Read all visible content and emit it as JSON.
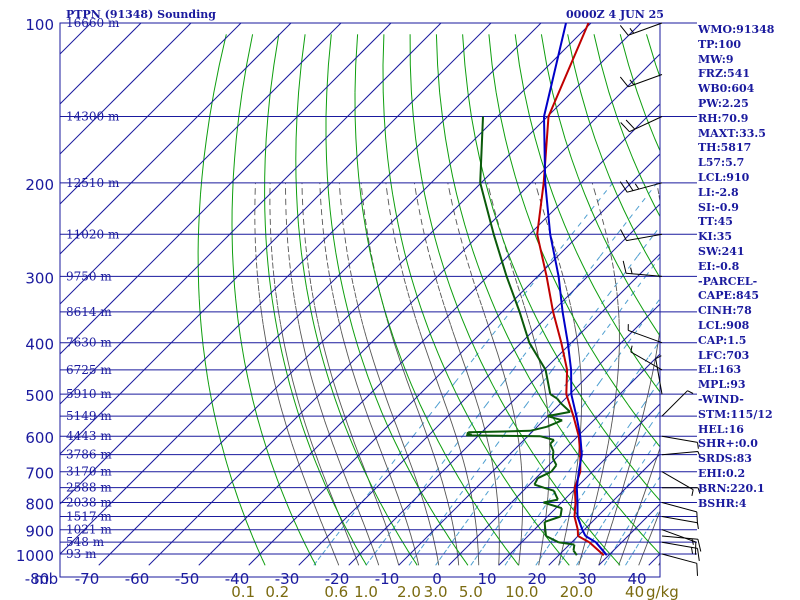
{
  "header": {
    "station_title": "PTPN (91348) Sounding",
    "valid_time": "0000Z  4 JUN 25"
  },
  "colors": {
    "grid": "#1a1a9e",
    "isotherm_text": "#1a1a9e",
    "dry_adiabat": "#0e9e0e",
    "moist_adiabat": "#555555",
    "mixing_ratio": "#4f9fd0",
    "temperature": "#c00000",
    "virtual_temperature": "#0000c8",
    "dewpoint": "#0a5a0a",
    "mixing_label": "#7a6a10",
    "wind_barb": "#000000"
  },
  "indices": [
    "WMO:91348",
    "TP:100",
    "MW:9",
    "FRZ:541",
    "WB0:604",
    "PW:2.25",
    "RH:70.9",
    "MAXT:33.5",
    "TH:5817",
    "L57:5.7",
    "LCL:910",
    "LI:-2.8",
    "SI:-0.9",
    "TT:45",
    "KI:35",
    "SW:241",
    "EI:-0.8",
    "-PARCEL-",
    "CAPE:845",
    "CINH:78",
    "LCL:908",
    "CAP:1.5",
    "LFC:703",
    "EL:163",
    "MPL:93",
    "-WIND-",
    "STM:115/12",
    "HEL:16",
    "SHR+:0.0",
    "SRDS:83",
    "EHI:0.2",
    "BRN:220.1",
    "BSHR:4"
  ],
  "chart_data": {
    "type": "line",
    "title": "PTPN (91348) Sounding",
    "subtitle": "0000Z  4 JUN 25",
    "y_axis_unit": "mb",
    "x_axis_unit": "",
    "mixing_ratio_unit": "g/kg",
    "pressure_ticks": [
      100,
      200,
      300,
      400,
      500,
      600,
      700,
      800,
      900,
      1000
    ],
    "temperature_ticks": [
      -80,
      -70,
      -60,
      -50,
      -40,
      -30,
      -20,
      -10,
      0,
      10,
      20,
      30,
      40
    ],
    "mixing_ratio_labels": [
      "0.1",
      "0.2",
      "0.6",
      "1.0",
      "2.0",
      "3.0",
      "5.0",
      "10.0",
      "20.0",
      "40"
    ],
    "mixing_ratio_values": [
      0.1,
      0.2,
      0.6,
      1.0,
      2.0,
      3.0,
      5.0,
      10.0,
      20.0,
      40.0
    ],
    "height_labels": [
      {
        "p": 100,
        "label": "16660 m"
      },
      {
        "p": 150,
        "label": "14300 m"
      },
      {
        "p": 200,
        "label": "12510 m"
      },
      {
        "p": 250,
        "label": "11020 m"
      },
      {
        "p": 300,
        "label": "9750 m"
      },
      {
        "p": 350,
        "label": "8614 m"
      },
      {
        "p": 400,
        "label": "7630 m"
      },
      {
        "p": 450,
        "label": "6725 m"
      },
      {
        "p": 500,
        "label": "5910 m"
      },
      {
        "p": 550,
        "label": "5149 m"
      },
      {
        "p": 600,
        "label": "4443 m"
      },
      {
        "p": 650,
        "label": "3786 m"
      },
      {
        "p": 700,
        "label": "3170 m"
      },
      {
        "p": 750,
        "label": "2588 m"
      },
      {
        "p": 800,
        "label": "2038 m"
      },
      {
        "p": 850,
        "label": "1517 m"
      },
      {
        "p": 900,
        "label": "1021 m"
      },
      {
        "p": 950,
        "label": "548 m"
      },
      {
        "p": 1000,
        "label": "93 m"
      }
    ],
    "p_range": [
      100,
      1000
    ],
    "t_range_at_bottom": [
      -80,
      40
    ],
    "series": [
      {
        "key": "temperature",
        "points": [
          [
            1005,
            29
          ],
          [
            950,
            23.5
          ],
          [
            925,
            20
          ],
          [
            900,
            18.7
          ],
          [
            850,
            15.4
          ],
          [
            800,
            12.8
          ],
          [
            750,
            9.7
          ],
          [
            700,
            7.6
          ],
          [
            650,
            4.2
          ],
          [
            600,
            0.2
          ],
          [
            550,
            -4.9
          ],
          [
            500,
            -10.7
          ],
          [
            450,
            -15.4
          ],
          [
            400,
            -22.0
          ],
          [
            350,
            -29.8
          ],
          [
            300,
            -38.2
          ],
          [
            250,
            -48.5
          ],
          [
            200,
            -57.5
          ],
          [
            150,
            -69.8
          ],
          [
            100,
            -80.5
          ]
        ]
      },
      {
        "key": "virtual_temperature",
        "points": [
          [
            1005,
            29.6
          ],
          [
            950,
            24.8
          ],
          [
            925,
            21.5
          ],
          [
            900,
            19.6
          ],
          [
            850,
            16.0
          ],
          [
            800,
            13.2
          ],
          [
            750,
            10.1
          ],
          [
            700,
            7.3
          ],
          [
            650,
            4.5
          ],
          [
            600,
            0.5
          ],
          [
            550,
            -4.3
          ],
          [
            500,
            -9.7
          ],
          [
            450,
            -14.6
          ],
          [
            400,
            -20.7
          ],
          [
            350,
            -27.9
          ],
          [
            300,
            -35.8
          ],
          [
            250,
            -45.9
          ],
          [
            200,
            -57.2
          ],
          [
            150,
            -70.7
          ],
          [
            100,
            -85
          ]
        ]
      },
      {
        "key": "dewpoint",
        "points": [
          [
            1005,
            23.6
          ],
          [
            985,
            22.0
          ],
          [
            960,
            21.0
          ],
          [
            950,
            17.3
          ],
          [
            925,
            13.6
          ],
          [
            900,
            12.2
          ],
          [
            870,
            10.5
          ],
          [
            850,
            12.6
          ],
          [
            820,
            11.2
          ],
          [
            800,
            6.4
          ],
          [
            790,
            8.7
          ],
          [
            760,
            6.1
          ],
          [
            750,
            3.5
          ],
          [
            740,
            1.0
          ],
          [
            720,
            0.4
          ],
          [
            700,
            1.8
          ],
          [
            680,
            1.5
          ],
          [
            660,
            -0.6
          ],
          [
            640,
            -1.9
          ],
          [
            620,
            -4.0
          ],
          [
            610,
            -4.0
          ],
          [
            600,
            -7.5
          ],
          [
            598,
            -22.5
          ],
          [
            596,
            -21.5
          ],
          [
            594,
            -22.6
          ],
          [
            590,
            -22.7
          ],
          [
            586,
            -10.6
          ],
          [
            576,
            -8.1
          ],
          [
            560,
            -6.3
          ],
          [
            550,
            -10.1
          ],
          [
            540,
            -6.4
          ],
          [
            520,
            -10.0
          ],
          [
            510,
            -11.6
          ],
          [
            500,
            -13.9
          ],
          [
            450,
            -19.7
          ],
          [
            400,
            -28.4
          ],
          [
            350,
            -36.5
          ],
          [
            300,
            -46.2
          ],
          [
            250,
            -57.2
          ],
          [
            200,
            -70.2
          ],
          [
            150,
            -82.9
          ]
        ]
      }
    ],
    "wind_barbs": [
      {
        "p": 1000,
        "dir": 105,
        "spd": 10
      },
      {
        "p": 950,
        "dir": 100,
        "spd": 15
      },
      {
        "p": 925,
        "dir": 95,
        "spd": 15
      },
      {
        "p": 900,
        "dir": 110,
        "spd": 10
      },
      {
        "p": 850,
        "dir": 100,
        "spd": 5
      },
      {
        "p": 800,
        "dir": 105,
        "spd": 10
      },
      {
        "p": 750,
        "dir": 90,
        "spd": 5
      },
      {
        "p": 700,
        "dir": 120,
        "spd": 5
      },
      {
        "p": 650,
        "dir": 85,
        "spd": 5
      },
      {
        "p": 600,
        "dir": 100,
        "spd": 5
      },
      {
        "p": 550,
        "dir": 45,
        "spd": 5
      },
      {
        "p": 500,
        "dir": 350,
        "spd": 5
      },
      {
        "p": 450,
        "dir": 300,
        "spd": 5
      },
      {
        "p": 400,
        "dir": 290,
        "spd": 5
      },
      {
        "p": 300,
        "dir": 275,
        "spd": 15
      },
      {
        "p": 250,
        "dir": 260,
        "spd": 10
      },
      {
        "p": 200,
        "dir": 255,
        "spd": 25
      },
      {
        "p": 150,
        "dir": 245,
        "spd": 20
      },
      {
        "p": 125,
        "dir": 250,
        "spd": 15
      },
      {
        "p": 100,
        "dir": 250,
        "spd": 15
      }
    ],
    "grid": true,
    "legend": "none"
  }
}
